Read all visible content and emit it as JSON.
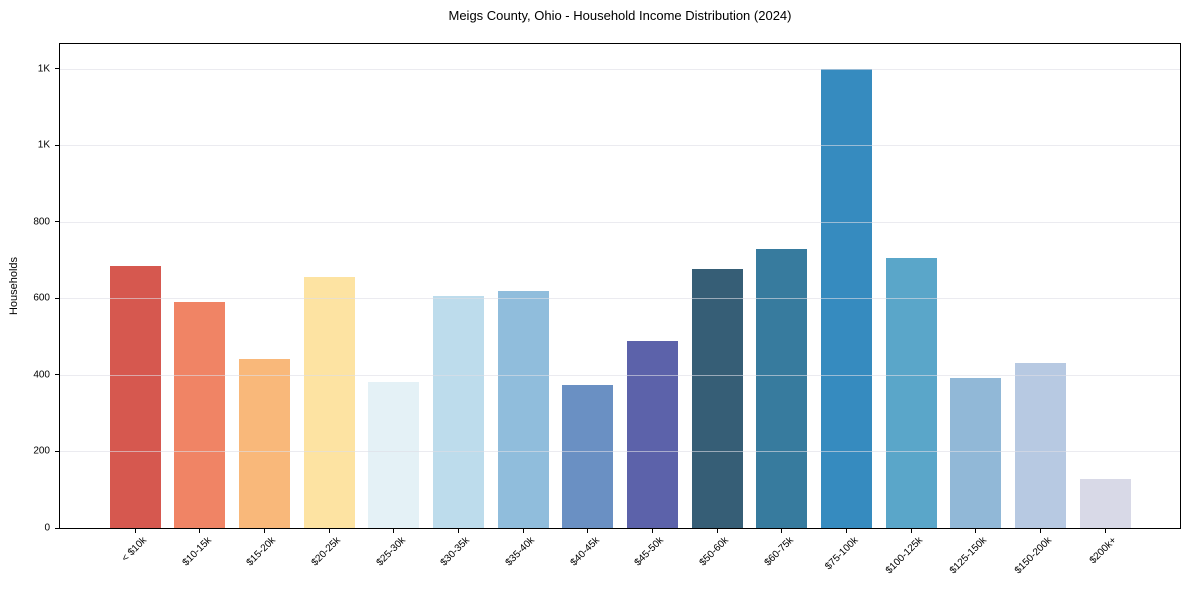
{
  "chart_data": {
    "type": "bar",
    "title": "Meigs County, Ohio - Household Income Distribution (2024)",
    "xlabel": "",
    "ylabel": "Households",
    "categories": [
      "< $10k",
      "$10-15k",
      "$15-20k",
      "$20-25k",
      "$25-30k",
      "$30-35k",
      "$35-40k",
      "$40-45k",
      "$45-50k",
      "$50-60k",
      "$60-75k",
      "$75-100k",
      "$100-125k",
      "$125-150k",
      "$150-200k",
      "$200k+"
    ],
    "values": [
      685,
      592,
      443,
      657,
      381,
      606,
      619,
      373,
      488,
      678,
      730,
      1200,
      705,
      392,
      432,
      129
    ],
    "bar_colors": [
      "#d6584f",
      "#f08465",
      "#f9b87a",
      "#fde3a2",
      "#e4f1f6",
      "#bddcec",
      "#90bddc",
      "#6a90c3",
      "#5c62aa",
      "#365e76",
      "#377b9e",
      "#368bbf",
      "#5aa6c9",
      "#91b8d7",
      "#b7c9e2",
      "#d8d9e7"
    ],
    "ylim": [
      0,
      1265
    ],
    "y_ticks": [
      {
        "value": 0,
        "label": "0"
      },
      {
        "value": 200,
        "label": "200"
      },
      {
        "value": 400,
        "label": "400"
      },
      {
        "value": 600,
        "label": "600"
      },
      {
        "value": 800,
        "label": "800"
      },
      {
        "value": 1000,
        "label": "1K"
      },
      {
        "value": 1200,
        "label": "1K"
      }
    ],
    "grid": "horizontal",
    "gridline_color": "rgba(221,221,230,0.6)",
    "legend": "none",
    "background": "#ffffff",
    "x_tick_rotation_deg": 45
  }
}
